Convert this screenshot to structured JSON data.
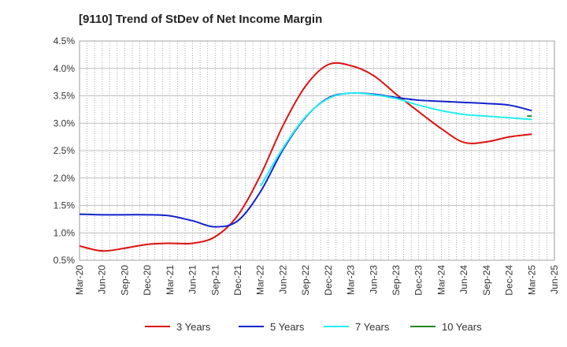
{
  "chart_data": {
    "type": "line",
    "title": "[9110]  Trend of StDev of Net Income Margin",
    "xlabel": "",
    "ylabel": "",
    "x_ticks": [
      "Mar-20",
      "Jun-20",
      "Sep-20",
      "Dec-20",
      "Mar-21",
      "Jun-21",
      "Sep-21",
      "Dec-21",
      "Mar-22",
      "Jun-22",
      "Sep-22",
      "Dec-22",
      "Mar-23",
      "Jun-23",
      "Sep-23",
      "Dec-23",
      "Mar-24",
      "Jun-24",
      "Sep-24",
      "Dec-24",
      "Mar-25",
      "Jun-25"
    ],
    "y_ticks": [
      "0.5%",
      "1.0%",
      "1.5%",
      "2.0%",
      "2.5%",
      "3.0%",
      "3.5%",
      "4.0%",
      "4.5%"
    ],
    "ylim": [
      0.5,
      4.5
    ],
    "y_unit": "%",
    "grid": true,
    "legend_position": "bottom",
    "series": [
      {
        "name": "3 Years",
        "color": "#dd1111",
        "x": [
          "Mar-20",
          "Jun-20",
          "Sep-20",
          "Dec-20",
          "Mar-21",
          "Jun-21",
          "Sep-21",
          "Dec-21",
          "Mar-22",
          "Jun-22",
          "Sep-22",
          "Dec-22",
          "Mar-23",
          "Jun-23",
          "Sep-23",
          "Dec-23",
          "Mar-24",
          "Jun-24",
          "Sep-24",
          "Dec-24",
          "Mar-25"
        ],
        "values": [
          0.76,
          0.67,
          0.72,
          0.79,
          0.81,
          0.81,
          0.93,
          1.32,
          2.05,
          2.96,
          3.68,
          4.07,
          4.05,
          3.87,
          3.53,
          3.21,
          2.9,
          2.65,
          2.66,
          2.75,
          2.8
        ]
      },
      {
        "name": "5 Years",
        "color": "#1122cc",
        "x": [
          "Mar-20",
          "Jun-20",
          "Sep-20",
          "Dec-20",
          "Mar-21",
          "Jun-21",
          "Sep-21",
          "Dec-21",
          "Mar-22",
          "Jun-22",
          "Sep-22",
          "Dec-22",
          "Mar-23",
          "Jun-23",
          "Sep-23",
          "Dec-23",
          "Mar-24",
          "Jun-24",
          "Sep-24",
          "Dec-24",
          "Mar-25"
        ],
        "values": [
          1.34,
          1.33,
          1.33,
          1.33,
          1.31,
          1.22,
          1.11,
          1.22,
          1.75,
          2.52,
          3.11,
          3.46,
          3.55,
          3.53,
          3.47,
          3.42,
          3.4,
          3.38,
          3.36,
          3.33,
          3.23
        ]
      },
      {
        "name": "7 Years",
        "color": "#22eeee",
        "x": [
          "Mar-22",
          "Jun-22",
          "Sep-22",
          "Dec-22",
          "Mar-23",
          "Jun-23",
          "Sep-23",
          "Dec-23",
          "Mar-24",
          "Jun-24",
          "Sep-24",
          "Dec-24",
          "Mar-25"
        ],
        "values": [
          1.85,
          2.55,
          3.12,
          3.45,
          3.55,
          3.52,
          3.45,
          3.33,
          3.23,
          3.16,
          3.13,
          3.1,
          3.07
        ]
      },
      {
        "name": "10 Years",
        "color": "#228822",
        "x": [
          "Mar-25"
        ],
        "values": [
          3.13
        ]
      }
    ]
  }
}
